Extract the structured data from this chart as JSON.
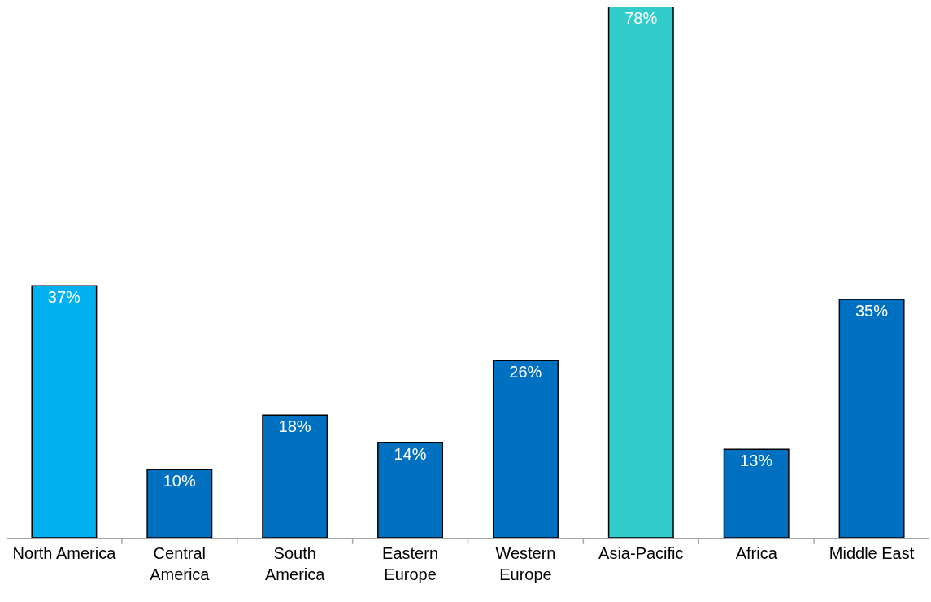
{
  "chart_data": {
    "type": "bar",
    "categories": [
      "North America",
      "Central\nAmerica",
      "South\nAmerica",
      "Eastern\nEurope",
      "Western\nEurope",
      "Asia-Pacific",
      "Africa",
      "Middle East"
    ],
    "values": [
      37,
      10,
      18,
      14,
      26,
      78,
      13,
      35
    ],
    "value_labels": [
      "37%",
      "10%",
      "18%",
      "14%",
      "26%",
      "78%",
      "13%",
      "35%"
    ],
    "colors": [
      "#00b0f0",
      "#0070c0",
      "#0070c0",
      "#0070c0",
      "#0070c0",
      "#33cccc",
      "#0070c0",
      "#0070c0"
    ]
  }
}
